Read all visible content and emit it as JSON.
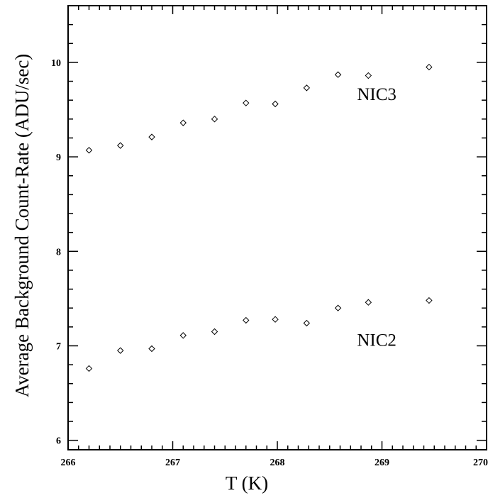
{
  "chart_data": {
    "type": "scatter",
    "xlabel": "T (K)",
    "ylabel": "Average Background Count-Rate (ADU/sec)",
    "xlim": [
      266,
      270
    ],
    "ylim": [
      5.9,
      10.6
    ],
    "x_ticks": [
      "266",
      "267",
      "268",
      "269",
      "270"
    ],
    "y_ticks": [
      "6",
      "7",
      "8",
      "9",
      "10"
    ],
    "marker": "diamond-open",
    "grid": false,
    "series": [
      {
        "name": "NIC3",
        "x": [
          266.2,
          266.5,
          266.8,
          267.1,
          267.4,
          267.7,
          267.98,
          268.28,
          268.58,
          268.87,
          269.45
        ],
        "y": [
          9.07,
          9.12,
          9.21,
          9.36,
          9.4,
          9.57,
          9.56,
          9.73,
          9.87,
          9.86,
          9.95
        ]
      },
      {
        "name": "NIC2",
        "x": [
          266.2,
          266.5,
          266.8,
          267.1,
          267.4,
          267.7,
          267.98,
          268.28,
          268.58,
          268.87,
          269.45
        ],
        "y": [
          6.76,
          6.95,
          6.97,
          7.11,
          7.15,
          7.27,
          7.28,
          7.24,
          7.4,
          7.46,
          7.48
        ]
      }
    ],
    "annotations": [
      {
        "text": "NIC3",
        "x": 268.95,
        "y": 9.6
      },
      {
        "text": "NIC2",
        "x": 268.95,
        "y": 7.0
      }
    ]
  }
}
